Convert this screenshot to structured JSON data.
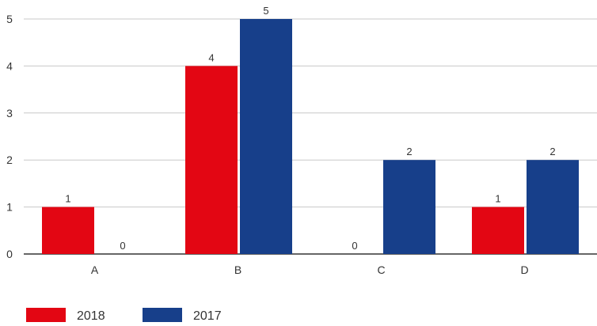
{
  "chart_data": {
    "type": "bar",
    "categories": [
      "A",
      "B",
      "C",
      "D"
    ],
    "series": [
      {
        "name": "2018",
        "values": [
          1,
          4,
          0,
          1
        ],
        "color": "#e30613"
      },
      {
        "name": "2017",
        "values": [
          0,
          5,
          2,
          2
        ],
        "color": "#173f8a"
      }
    ],
    "ylim": [
      0,
      5
    ],
    "y_ticks": [
      0,
      1,
      2,
      3,
      4,
      5
    ],
    "grid": true,
    "legend_position": "bottom-left",
    "data_labels": true
  }
}
